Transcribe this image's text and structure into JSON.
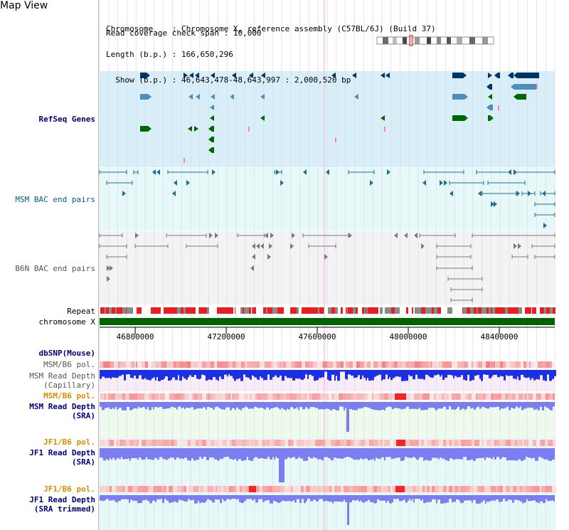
{
  "view": {
    "title": "Map View"
  },
  "header": {
    "rows": [
      {
        "label": "Chromosome    ",
        "value": ": Chromosome X, reference assembly (C57BL/6J) (Build 37)"
      },
      {
        "label": "Length (b.p.) ",
        "value": ": 166,650,296"
      },
      {
        "label": "  Show (b.p.) ",
        "value": ": 46,643,478-48,643,997 : 2,000,520 bp"
      },
      {
        "label": "Read coverage check span ",
        "value": ": 10,000"
      }
    ]
  },
  "range": {
    "start": 46643478,
    "end": 48643997
  },
  "axis": {
    "ticks": [
      "46800000",
      "47200000",
      "47600000",
      "48000000",
      "48400000"
    ],
    "tick_values": [
      46800000,
      47200000,
      47600000,
      48000000,
      48400000
    ]
  },
  "tracks": {
    "refseq": "RefSeq Genes",
    "msm_bac": "MSM BAC end pairs",
    "b6n_bac": "B6N BAC end pairs",
    "repeat": "Repeat",
    "chromosome": "chromosome X",
    "dbsnp": "dbSNP(Mouse)",
    "msm_b6_pol_cap": "MSM/B6 pol.",
    "msm_depth_cap_1": "MSM Read Depth",
    "msm_depth_cap_2": "(Capillary)",
    "msm_b6_pol_sra": "MSM/B6 pol.",
    "msm_depth_sra_1": "MSM Read Depth",
    "msm_depth_sra_2": "(SRA)",
    "jf1_b6_pol_1": "JF1/B6 pol.",
    "jf1_depth_1": "JF1 Read Depth",
    "jf1_depth_1b": "(SRA)",
    "jf1_b6_pol_2": "JF1/B6 pol.",
    "jf1_depth_2": "JF1 Read Depth",
    "jf1_depth_2b": "(SRA trimmed)"
  },
  "colors": {
    "refseq_bg": "#d8eef8",
    "msm_bg": "#e6f8f8",
    "b6n_bg": "#f3f3f6",
    "depth_cap_bg": "#f8ecf8",
    "depth_sra_bg": "#eefaee",
    "depth_jf1_bg": "#e6f8f8",
    "gene_navy": "#003366",
    "gene_blue": "#4b8fbd",
    "gene_green": "#006600",
    "bac_teal": "#1f6f8f",
    "bac_grey": "#7a7a7a",
    "repeat_red": "#ee1c1c",
    "chrom_green": "#006400",
    "depth_blue": "#1a2fe6",
    "depth_light": "#7a7ef0"
  }
}
